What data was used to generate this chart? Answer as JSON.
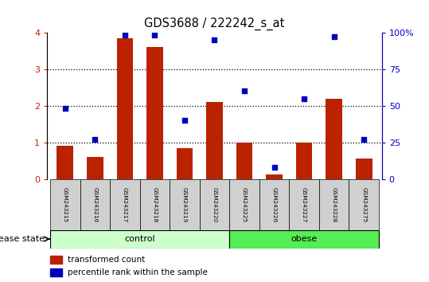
{
  "title": "GDS3688 / 222242_s_at",
  "samples": [
    "GSM243215",
    "GSM243216",
    "GSM243217",
    "GSM243218",
    "GSM243219",
    "GSM243220",
    "GSM243225",
    "GSM243226",
    "GSM243227",
    "GSM243228",
    "GSM243275"
  ],
  "bar_values": [
    0.9,
    0.6,
    3.85,
    3.6,
    0.85,
    2.1,
    1.0,
    0.12,
    1.0,
    2.2,
    0.55
  ],
  "dot_values_pct": [
    48,
    27,
    98,
    98,
    40,
    95,
    60,
    8,
    55,
    97,
    27
  ],
  "bar_color": "#bb2200",
  "dot_color": "#0000bb",
  "ylim_left": [
    0,
    4
  ],
  "ylim_right": [
    0,
    100
  ],
  "yticks_left": [
    0,
    1,
    2,
    3,
    4
  ],
  "yticks_right": [
    0,
    25,
    50,
    75,
    100
  ],
  "yticklabels_right": [
    "0",
    "25",
    "50",
    "75",
    "100%"
  ],
  "groups": [
    {
      "label": "control",
      "indices": [
        0,
        1,
        2,
        3,
        4,
        5
      ],
      "color": "#ccffcc"
    },
    {
      "label": "obese",
      "indices": [
        6,
        7,
        8,
        9,
        10
      ],
      "color": "#55ee55"
    }
  ],
  "group_label": "disease state",
  "legend_bar": "transformed count",
  "legend_dot": "percentile rank within the sample",
  "tick_color_left": "#cc2200",
  "tick_color_right": "#0000cc",
  "sample_box_color": "#d0d0d0",
  "bar_width": 0.55
}
